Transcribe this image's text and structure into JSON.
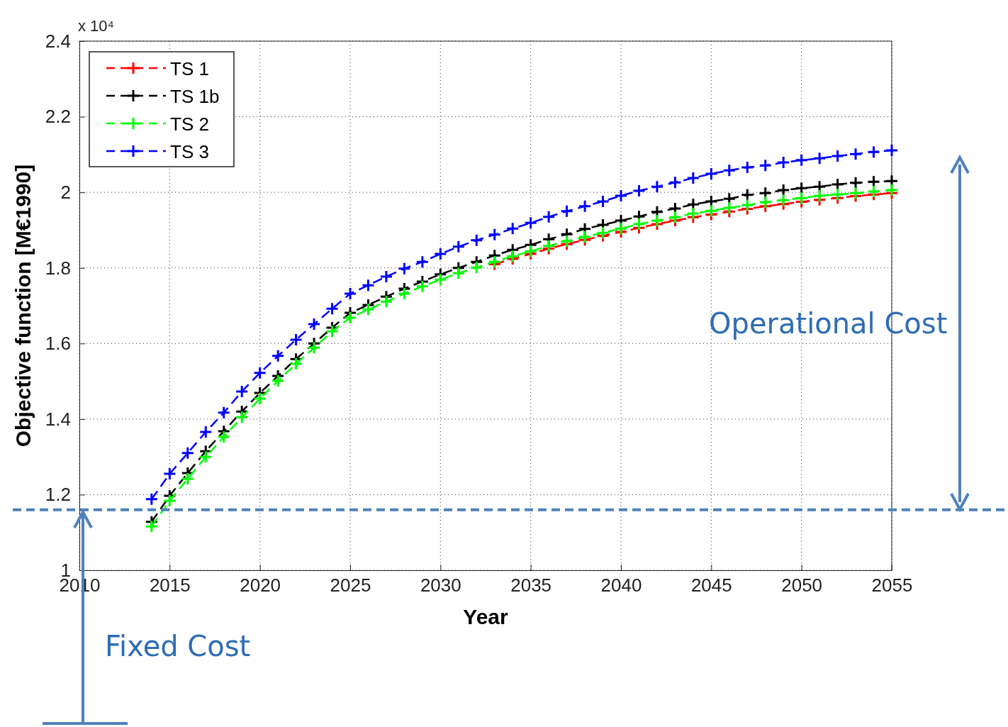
{
  "chart_data": {
    "type": "line",
    "xlabel": "Year",
    "ylabel": "Objective function [M€1990]",
    "x": [
      2014,
      2015,
      2016,
      2017,
      2018,
      2019,
      2020,
      2021,
      2022,
      2023,
      2024,
      2025,
      2026,
      2027,
      2028,
      2029,
      2030,
      2031,
      2032,
      2033,
      2034,
      2035,
      2036,
      2037,
      2038,
      2039,
      2040,
      2041,
      2042,
      2043,
      2044,
      2045,
      2046,
      2047,
      2048,
      2049,
      2050,
      2051,
      2052,
      2053,
      2054,
      2055
    ],
    "series": [
      {
        "name": "TS 1",
        "color": "#ff0000",
        "values": [
          null,
          null,
          null,
          null,
          null,
          null,
          null,
          null,
          null,
          null,
          null,
          null,
          null,
          null,
          null,
          null,
          null,
          null,
          null,
          1.81,
          1.824,
          1.837,
          1.851,
          1.863,
          1.874,
          1.885,
          1.895,
          1.906,
          1.916,
          1.925,
          1.934,
          1.941,
          1.949,
          1.956,
          1.963,
          1.969,
          1.975,
          1.98,
          1.985,
          1.99,
          1.994,
          1.998
        ]
      },
      {
        "name": "TS 1b",
        "color": "#000000",
        "values": [
          1.128,
          1.197,
          1.257,
          1.315,
          1.368,
          1.42,
          1.469,
          1.514,
          1.559,
          1.6,
          1.642,
          1.681,
          1.702,
          1.724,
          1.745,
          1.764,
          1.783,
          1.8,
          1.816,
          1.833,
          1.848,
          1.861,
          1.876,
          1.889,
          1.903,
          1.914,
          1.925,
          1.936,
          1.948,
          1.957,
          1.968,
          1.976,
          1.983,
          1.993,
          1.998,
          2.006,
          2.011,
          2.015,
          2.021,
          2.025,
          2.028,
          2.03
        ]
      },
      {
        "name": "TS 2",
        "color": "#00ff00",
        "values": [
          1.116,
          1.184,
          1.242,
          1.3,
          1.353,
          1.405,
          1.454,
          1.501,
          1.546,
          1.589,
          1.632,
          1.668,
          1.69,
          1.711,
          1.732,
          1.751,
          1.769,
          1.786,
          1.801,
          1.816,
          1.831,
          1.844,
          1.858,
          1.871,
          1.882,
          1.893,
          1.904,
          1.916,
          1.925,
          1.934,
          1.944,
          1.951,
          1.959,
          1.966,
          1.974,
          1.979,
          1.985,
          1.991,
          1.994,
          1.998,
          2.002,
          2.006
        ]
      },
      {
        "name": "TS 3",
        "color": "#0000ff",
        "values": [
          1.188,
          1.255,
          1.31,
          1.366,
          1.417,
          1.473,
          1.522,
          1.567,
          1.61,
          1.651,
          1.692,
          1.732,
          1.754,
          1.777,
          1.798,
          1.816,
          1.837,
          1.856,
          1.873,
          1.888,
          1.904,
          1.919,
          1.935,
          1.95,
          1.963,
          1.976,
          1.991,
          2.004,
          2.015,
          2.026,
          2.038,
          2.049,
          2.058,
          2.066,
          2.071,
          2.079,
          2.085,
          2.09,
          2.096,
          2.101,
          2.107,
          2.111
        ]
      }
    ],
    "xlim": [
      2010,
      2055
    ],
    "xticks": [
      2010,
      2015,
      2020,
      2025,
      2030,
      2035,
      2040,
      2045,
      2050,
      2055
    ],
    "ylim": [
      1,
      2.4
    ],
    "yticks": [
      1,
      1.2,
      1.4,
      1.6,
      1.8,
      2,
      2.2,
      2.4
    ],
    "grid": true,
    "legend": "top left",
    "marker": "cross",
    "line_style": "dashed",
    "ref_lines": [
      {
        "axis": "y",
        "value": 1.16,
        "color": "#4f81bd",
        "line_style": "dashed"
      }
    ],
    "annotations": [
      "x 10⁴",
      "Operational Cost",
      "Fixed Cost"
    ]
  }
}
